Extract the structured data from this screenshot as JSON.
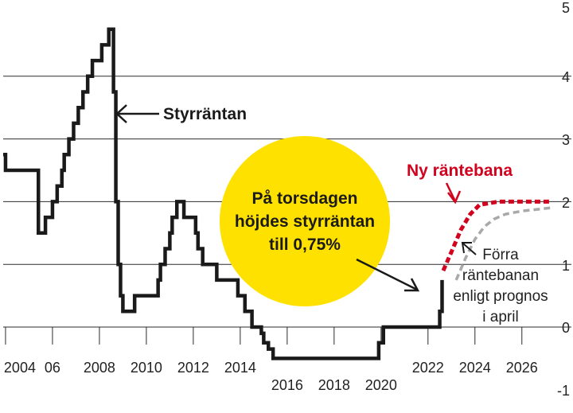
{
  "chart_data": {
    "type": "line",
    "title": "",
    "xlabel": "",
    "ylabel": "",
    "ylim": [
      -1,
      5
    ],
    "xlim": [
      2003.9,
      2027.5
    ],
    "grid": true,
    "y_ticks": [
      "5",
      "4",
      "3",
      "2",
      "1",
      "0",
      "-1"
    ],
    "x_ticks_upper": [
      "2004",
      "06",
      "2008",
      "2010",
      "2012",
      "2014",
      "2022",
      "2024",
      "2026"
    ],
    "x_ticks_lower": [
      "2016",
      "2018",
      "2020"
    ],
    "series": [
      {
        "name": "Styrräntan",
        "color": "#1a1a1a",
        "style": "solid",
        "step": true,
        "x": [
          2003.9,
          2004.0,
          2005.4,
          2005.7,
          2006.0,
          2006.2,
          2006.4,
          2006.5,
          2006.7,
          2006.9,
          2007.1,
          2007.3,
          2007.5,
          2007.7,
          2007.9,
          2008.1,
          2008.4,
          2008.5,
          2008.6,
          2008.7,
          2008.8,
          2008.9,
          2009.0,
          2009.2,
          2009.4,
          2009.5,
          2010.5,
          2010.6,
          2010.8,
          2011.0,
          2011.1,
          2011.3,
          2011.5,
          2011.6,
          2012.1,
          2012.2,
          2012.4,
          2012.9,
          2013.0,
          2013.3,
          2013.9,
          2014.2,
          2014.5,
          2014.9,
          2015.0,
          2015.2,
          2015.4,
          2016.0,
          2019.9,
          2020.1,
          2022.4,
          2022.5,
          2022.6
        ],
        "y": [
          2.75,
          2.5,
          1.5,
          1.75,
          2.0,
          2.25,
          2.5,
          2.75,
          3.0,
          3.25,
          3.5,
          3.75,
          4.0,
          4.25,
          4.25,
          4.5,
          4.75,
          4.75,
          3.75,
          2.0,
          1.0,
          0.5,
          0.25,
          0.25,
          0.25,
          0.5,
          0.75,
          1.0,
          1.25,
          1.5,
          1.75,
          2.0,
          2.0,
          1.75,
          1.5,
          1.25,
          1.0,
          1.0,
          0.75,
          0.75,
          0.5,
          0.25,
          0.0,
          -0.1,
          -0.25,
          -0.35,
          -0.5,
          -0.5,
          -0.25,
          0.0,
          0.0,
          0.25,
          0.75
        ]
      },
      {
        "name": "Ny räntebana",
        "color": "#d2021e",
        "style": "dotted",
        "x": [
          2022.65,
          2023.0,
          2023.4,
          2023.8,
          2024.2,
          2025.0,
          2026.0,
          2027.2
        ],
        "y": [
          0.9,
          1.2,
          1.55,
          1.8,
          1.95,
          2.0,
          2.0,
          2.0
        ]
      },
      {
        "name": "Förra räntebanan enligt prognos i april",
        "color": "#a9a9a9",
        "style": "dashed",
        "x": [
          2023.2,
          2023.6,
          2024.0,
          2024.4,
          2024.8,
          2025.3,
          2026.0,
          2027.2
        ],
        "y": [
          0.75,
          1.1,
          1.4,
          1.6,
          1.72,
          1.8,
          1.85,
          1.9
        ]
      }
    ],
    "annotations": {
      "styrrantan": "Styrräntan",
      "ny_rantebana": "Ny räntebana",
      "forra_rantebanan": [
        "Förra",
        "räntebanan",
        "enligt prognos",
        "i april"
      ],
      "bubble": [
        "På torsdagen",
        "höjdes styrräntan",
        "till 0,75%"
      ]
    },
    "colors": {
      "bubble": "#ffe100",
      "grid": "#2b2b2b",
      "text": "#222222"
    }
  }
}
